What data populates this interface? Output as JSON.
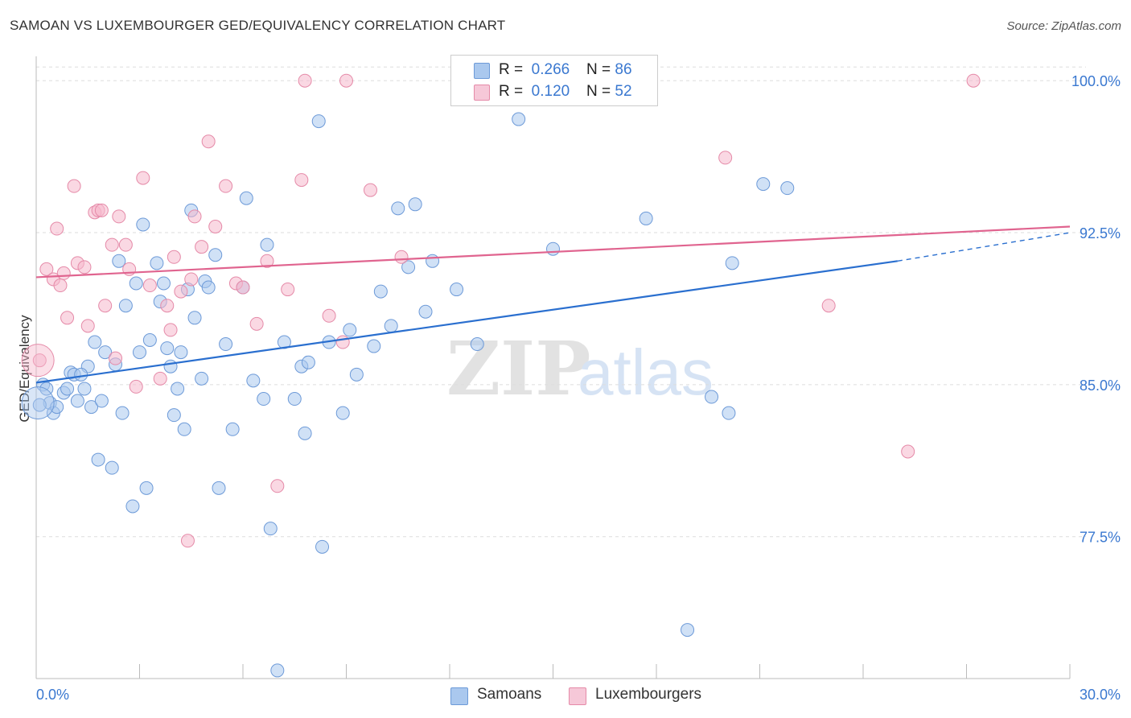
{
  "title": "SAMOAN VS LUXEMBOURGER GED/EQUIVALENCY CORRELATION CHART",
  "source": "Source: ZipAtlas.com",
  "watermark": {
    "zip": "ZIP",
    "atlas": "atlas"
  },
  "colors": {
    "samoan_fill": "#aac8ee",
    "samoan_stroke": "#6d9ad8",
    "samoan_line": "#2a6fcf",
    "lux_fill": "#f6b8cc",
    "lux_stroke": "#e58aa8",
    "lux_line": "#e0648f",
    "axis_label": "#3a78d0",
    "grid": "#dddddd"
  },
  "legend_top": {
    "rows": [
      {
        "r_label": "R =",
        "r_value": "0.266",
        "n_label": "N =",
        "n_value": "86"
      },
      {
        "r_label": "R =",
        "r_value": "0.120",
        "n_label": "N =",
        "n_value": "52"
      }
    ]
  },
  "legend_bottom": [
    "Samoans",
    "Luxembourgers"
  ],
  "chart_data": {
    "type": "scatter",
    "title": "SAMOAN VS LUXEMBOURGER GED/EQUIVALENCY CORRELATION CHART",
    "xlabel": "",
    "ylabel": "GED/Equivalency",
    "xlim": [
      0,
      30
    ],
    "ylim": [
      70.5,
      101.2
    ],
    "x_ticks_labeled": [
      "0.0%",
      "30.0%"
    ],
    "y_ticks": [
      {
        "value": 100,
        "label": "100.0%"
      },
      {
        "value": 92.5,
        "label": "92.5%"
      },
      {
        "value": 85,
        "label": "85.0%"
      },
      {
        "value": 77.5,
        "label": "77.5%"
      }
    ],
    "grid": true,
    "legend_position": "top-center",
    "series": [
      {
        "name": "Samoans",
        "r": 0.266,
        "n": 86,
        "trend": {
          "x0": 0,
          "y0": 85.1,
          "x1": 25.0,
          "y1": 91.1,
          "dash_to_x": 30.0,
          "dash_to_y": 92.5
        },
        "points": [
          [
            0.2,
            85.0
          ],
          [
            0.3,
            84.8
          ],
          [
            0.4,
            84.1
          ],
          [
            0.5,
            83.6
          ],
          [
            0.6,
            83.9
          ],
          [
            0.8,
            84.6
          ],
          [
            0.9,
            84.8
          ],
          [
            1.0,
            85.6
          ],
          [
            1.1,
            85.5
          ],
          [
            1.2,
            84.2
          ],
          [
            1.4,
            84.8
          ],
          [
            1.5,
            85.9
          ],
          [
            1.6,
            83.9
          ],
          [
            1.7,
            87.1
          ],
          [
            1.8,
            81.3
          ],
          [
            1.9,
            84.2
          ],
          [
            2.0,
            86.6
          ],
          [
            2.2,
            80.9
          ],
          [
            2.3,
            86.0
          ],
          [
            2.4,
            91.1
          ],
          [
            2.5,
            83.6
          ],
          [
            2.6,
            88.9
          ],
          [
            2.8,
            79.0
          ],
          [
            2.9,
            90.0
          ],
          [
            3.0,
            86.6
          ],
          [
            3.1,
            92.9
          ],
          [
            3.2,
            79.9
          ],
          [
            3.3,
            87.2
          ],
          [
            3.5,
            91.0
          ],
          [
            3.6,
            89.1
          ],
          [
            3.7,
            90.0
          ],
          [
            3.8,
            86.8
          ],
          [
            3.9,
            85.9
          ],
          [
            4.0,
            83.5
          ],
          [
            4.1,
            84.8
          ],
          [
            4.2,
            86.6
          ],
          [
            4.3,
            82.8
          ],
          [
            4.4,
            89.7
          ],
          [
            4.5,
            93.6
          ],
          [
            4.6,
            88.3
          ],
          [
            4.8,
            85.3
          ],
          [
            4.9,
            90.1
          ],
          [
            5.0,
            89.8
          ],
          [
            5.2,
            91.4
          ],
          [
            5.3,
            79.9
          ],
          [
            5.5,
            87.0
          ],
          [
            5.7,
            82.8
          ],
          [
            6.0,
            89.8
          ],
          [
            6.1,
            94.2
          ],
          [
            6.3,
            85.2
          ],
          [
            6.6,
            84.3
          ],
          [
            6.7,
            91.9
          ],
          [
            6.8,
            77.9
          ],
          [
            7.0,
            70.9
          ],
          [
            7.2,
            87.1
          ],
          [
            7.5,
            84.3
          ],
          [
            7.7,
            85.9
          ],
          [
            7.8,
            82.6
          ],
          [
            7.9,
            86.1
          ],
          [
            8.2,
            98.0
          ],
          [
            8.3,
            77.0
          ],
          [
            8.5,
            87.1
          ],
          [
            8.9,
            83.6
          ],
          [
            9.1,
            87.7
          ],
          [
            9.3,
            85.5
          ],
          [
            9.8,
            86.9
          ],
          [
            10.0,
            89.6
          ],
          [
            10.3,
            87.9
          ],
          [
            10.5,
            93.7
          ],
          [
            10.8,
            90.8
          ],
          [
            11.0,
            93.9
          ],
          [
            11.3,
            88.6
          ],
          [
            11.5,
            91.1
          ],
          [
            12.2,
            89.7
          ],
          [
            12.8,
            87.0
          ],
          [
            14.0,
            98.1
          ],
          [
            15.0,
            91.7
          ],
          [
            17.7,
            93.2
          ],
          [
            18.9,
            72.9
          ],
          [
            19.6,
            84.4
          ],
          [
            20.1,
            83.6
          ],
          [
            20.2,
            91.0
          ],
          [
            21.1,
            94.9
          ],
          [
            21.8,
            94.7
          ],
          [
            0.1,
            84.0
          ],
          [
            1.3,
            85.5
          ]
        ]
      },
      {
        "name": "Luxembourgers",
        "r": 0.12,
        "n": 52,
        "trend": {
          "x0": 0,
          "y0": 90.3,
          "x1": 30.0,
          "y1": 92.8
        },
        "points": [
          [
            0.1,
            86.2
          ],
          [
            0.3,
            90.7
          ],
          [
            0.5,
            90.2
          ],
          [
            0.6,
            92.7
          ],
          [
            0.7,
            89.9
          ],
          [
            0.8,
            90.5
          ],
          [
            0.9,
            88.3
          ],
          [
            1.1,
            94.8
          ],
          [
            1.2,
            91.0
          ],
          [
            1.4,
            90.8
          ],
          [
            1.5,
            87.9
          ],
          [
            1.7,
            93.5
          ],
          [
            1.8,
            93.6
          ],
          [
            1.9,
            93.6
          ],
          [
            2.0,
            88.9
          ],
          [
            2.2,
            91.9
          ],
          [
            2.3,
            86.3
          ],
          [
            2.4,
            93.3
          ],
          [
            2.6,
            91.9
          ],
          [
            2.7,
            90.7
          ],
          [
            2.9,
            84.9
          ],
          [
            3.1,
            95.2
          ],
          [
            3.3,
            89.9
          ],
          [
            3.6,
            85.3
          ],
          [
            3.8,
            88.9
          ],
          [
            3.9,
            87.7
          ],
          [
            4.0,
            91.3
          ],
          [
            4.2,
            89.6
          ],
          [
            4.4,
            77.3
          ],
          [
            4.5,
            90.2
          ],
          [
            4.6,
            93.3
          ],
          [
            4.8,
            91.8
          ],
          [
            5.0,
            97.0
          ],
          [
            5.2,
            92.8
          ],
          [
            5.5,
            94.8
          ],
          [
            5.8,
            90.0
          ],
          [
            6.0,
            89.8
          ],
          [
            6.4,
            88.0
          ],
          [
            6.7,
            91.1
          ],
          [
            7.0,
            80.0
          ],
          [
            7.3,
            89.7
          ],
          [
            7.7,
            95.1
          ],
          [
            7.8,
            100.0
          ],
          [
            8.5,
            88.4
          ],
          [
            8.9,
            87.1
          ],
          [
            9.0,
            100.0
          ],
          [
            9.7,
            94.6
          ],
          [
            10.6,
            91.3
          ],
          [
            20.0,
            96.2
          ],
          [
            23.0,
            88.9
          ],
          [
            25.3,
            81.7
          ],
          [
            27.2,
            100.0
          ]
        ]
      }
    ]
  }
}
